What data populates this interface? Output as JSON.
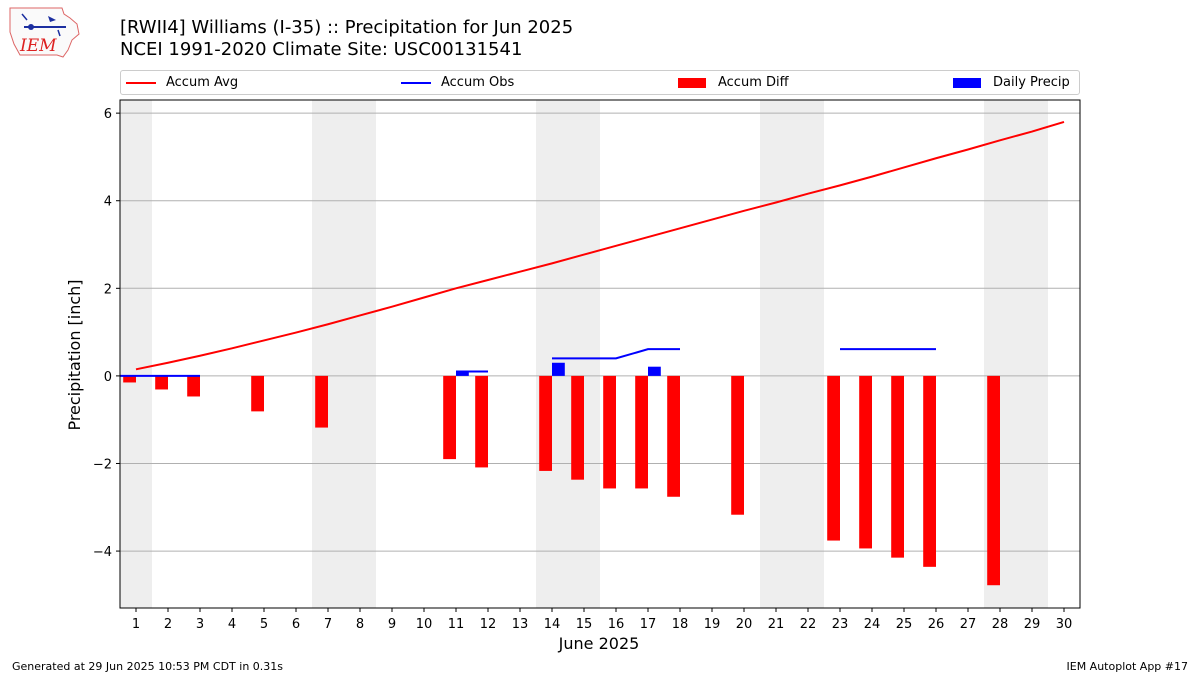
{
  "header": {
    "title_line1": "[RWII4] Williams (I-35) :: Precipitation for Jun 2025",
    "title_line2": "NCEI 1991-2020 Climate Site: USC00131541",
    "logo_text": "IEM"
  },
  "footer": {
    "left": "Generated at 29 Jun 2025 10:53 PM CDT in 0.31s",
    "right": "IEM Autoplot App #17"
  },
  "legend": [
    {
      "label": "Accum Avg",
      "color": "#ff0000",
      "kind": "line"
    },
    {
      "label": "Accum Obs",
      "color": "#0000ff",
      "kind": "line"
    },
    {
      "label": "Accum Diff",
      "color": "#ff0000",
      "kind": "patch"
    },
    {
      "label": "Daily Precip",
      "color": "#0000ff",
      "kind": "patch"
    }
  ],
  "chart_data": {
    "type": "bar",
    "title": "[RWII4] Williams (I-35) :: Precipitation for Jun 2025",
    "subtitle": "NCEI 1991-2020 Climate Site: USC00131541",
    "xlabel": "June 2025",
    "ylabel": "Precipitation [inch]",
    "xlim": [
      0.5,
      30.5
    ],
    "ylim": [
      -5.3,
      6.3
    ],
    "yticks": [
      -4,
      -2,
      0,
      2,
      4,
      6
    ],
    "ytick_labels": [
      "−4",
      "−2",
      "0",
      "2",
      "4",
      "6"
    ],
    "xticks": [
      1,
      2,
      3,
      4,
      5,
      6,
      7,
      8,
      9,
      10,
      11,
      12,
      13,
      14,
      15,
      16,
      17,
      18,
      19,
      20,
      21,
      22,
      23,
      24,
      25,
      26,
      27,
      28,
      29,
      30
    ],
    "grid": "horizontal",
    "legend_position": "top",
    "weekend_shading": [
      [
        0.5,
        1.5
      ],
      [
        6.5,
        8.5
      ],
      [
        13.5,
        15.5
      ],
      [
        20.5,
        22.5
      ],
      [
        27.5,
        29.5
      ]
    ],
    "shading_color": "#eeeeee",
    "series": [
      {
        "name": "Accum Avg",
        "kind": "line",
        "color": "#ff0000",
        "x": [
          1,
          2,
          3,
          4,
          5,
          6,
          7,
          8,
          9,
          10,
          11,
          12,
          13,
          14,
          15,
          16,
          17,
          18,
          19,
          20,
          21,
          22,
          23,
          24,
          25,
          26,
          27,
          28,
          29,
          30
        ],
        "values": [
          0.15,
          0.3,
          0.46,
          0.63,
          0.81,
          0.99,
          1.18,
          1.38,
          1.58,
          1.79,
          2.0,
          2.19,
          2.38,
          2.57,
          2.77,
          2.97,
          3.17,
          3.37,
          3.57,
          3.77,
          3.96,
          4.16,
          4.35,
          4.55,
          4.76,
          4.97,
          5.17,
          5.38,
          5.58,
          5.8
        ]
      },
      {
        "name": "Accum Obs",
        "kind": "step",
        "color": "#0000ff",
        "segments": [
          {
            "x": [
              0.5,
              3.0
            ],
            "values": [
              0.0,
              0.0
            ]
          },
          {
            "x": [
              11.0,
              12.0
            ],
            "values": [
              0.1,
              0.1
            ]
          },
          {
            "x": [
              14.0,
              16.0,
              17.0,
              18.0
            ],
            "values": [
              0.4,
              0.4,
              0.61,
              0.61
            ]
          },
          {
            "x": [
              23.0,
              26.0
            ],
            "values": [
              0.61,
              0.61
            ]
          }
        ]
      },
      {
        "name": "Accum Diff",
        "kind": "bar",
        "color": "#ff0000",
        "x": [
          1,
          2,
          3,
          5,
          7,
          11,
          12,
          14,
          15,
          16,
          17,
          18,
          20,
          23,
          24,
          25,
          26,
          28
        ],
        "values": [
          -0.15,
          -0.31,
          -0.47,
          -0.81,
          -1.18,
          -1.9,
          -2.09,
          -2.17,
          -2.37,
          -2.57,
          -2.57,
          -2.76,
          -3.17,
          -3.76,
          -3.94,
          -4.15,
          -4.36,
          -4.78
        ]
      },
      {
        "name": "Daily Precip",
        "kind": "bar",
        "color": "#0000ff",
        "x": [
          11,
          14,
          17
        ],
        "values": [
          0.1,
          0.3,
          0.21
        ]
      }
    ]
  }
}
